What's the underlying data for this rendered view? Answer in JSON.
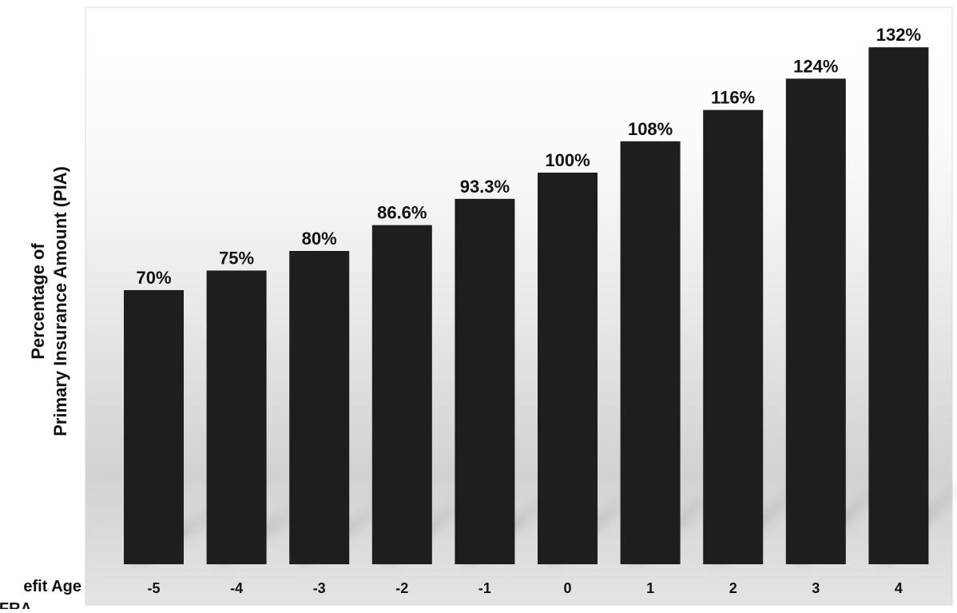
{
  "chart_data": {
    "type": "bar",
    "title": "",
    "xlabel": "Benefit Age\nvs. FRA",
    "xlabel_visible_lines": [
      "efit Age",
      "FRA"
    ],
    "ylabel": "Percentage of\nPrimary Insurance Amount (PIA)",
    "ylabel_lines": [
      "Percentage of",
      "Primary Insurance Amount (PIA)"
    ],
    "categories": [
      "-5",
      "-4",
      "-3",
      "-2",
      "-1",
      "0",
      "1",
      "2",
      "3",
      "4"
    ],
    "values": [
      70,
      75,
      80,
      86.6,
      93.3,
      100,
      108,
      116,
      124,
      132
    ],
    "data_labels": [
      "70%",
      "75%",
      "80%",
      "86.6%",
      "93.3%",
      "100%",
      "108%",
      "116%",
      "124%",
      "132%"
    ],
    "bar_color": "#1e1e1e",
    "value_unit": "%",
    "grid": false,
    "legend": "none"
  }
}
